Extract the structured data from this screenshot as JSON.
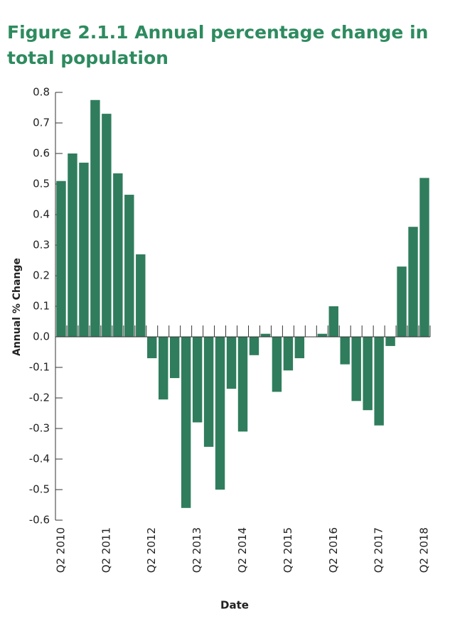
{
  "chart_data": {
    "type": "bar",
    "title": "Figure 2.1.1 Annual percentage change in total population",
    "x_label": "Date",
    "y_label": "Annual % Change",
    "color": "#2f7d5d",
    "categories": [
      "Q2 2010",
      null,
      null,
      null,
      "Q2 2011",
      null,
      null,
      null,
      "Q2 2012",
      null,
      null,
      null,
      "Q2 2013",
      null,
      null,
      null,
      "Q2 2014",
      null,
      null,
      null,
      "Q2 2015",
      null,
      null,
      null,
      "Q2 2016",
      null,
      null,
      null,
      "Q2 2017",
      null,
      null,
      null,
      "Q2 2018"
    ],
    "values": [
      0.51,
      0.6,
      0.57,
      0.775,
      0.73,
      0.535,
      0.465,
      0.27,
      -0.07,
      -0.205,
      -0.135,
      -0.56,
      -0.28,
      -0.36,
      -0.5,
      -0.17,
      -0.31,
      -0.06,
      0.01,
      -0.18,
      -0.11,
      -0.07,
      0,
      0.01,
      0.1,
      -0.09,
      -0.21,
      -0.24,
      -0.29,
      -0.03,
      0.23,
      0.36,
      0.52
    ],
    "ylim": [
      -0.6,
      0.8
    ],
    "yticks": [
      0.8,
      0.7,
      0.6,
      0.5,
      0.4,
      0.3,
      0.2,
      0.1,
      {
        "value": 0,
        "label": "0.0"
      },
      -0.1,
      -0.2,
      -0.3,
      -0.4,
      -0.5,
      -0.6
    ],
    "grid": false
  }
}
